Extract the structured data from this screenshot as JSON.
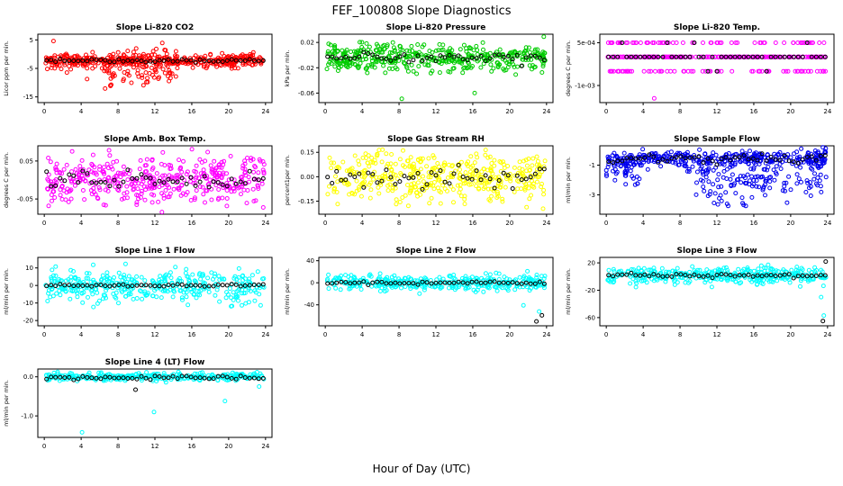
{
  "title": "FEF_100808  Slope Diagnostics",
  "xlabel": "Hour of Day (UTC)",
  "chart_data": [
    {
      "type": "scatter",
      "title": "Slope Li-820 CO2",
      "ylabel": "Licor ppm per min.",
      "color": "#ff0000",
      "xlim": [
        -0.7,
        24.7
      ],
      "ylim": [
        -17,
        7
      ],
      "xticks": [
        0,
        4,
        8,
        12,
        16,
        20,
        24
      ],
      "yticks": [
        {
          "v": 5,
          "label": "5"
        },
        {
          "v": -5,
          "label": "-5"
        },
        {
          "v": -15,
          "label": "-15"
        }
      ],
      "main": {
        "n": 380,
        "center": -2.2,
        "sd": 1.1,
        "clip": [
          -6,
          1.5
        ]
      },
      "extras": [
        {
          "n": 110,
          "x0": 6,
          "x1": 14.5,
          "center": -5,
          "sd": 3.5,
          "clip": [
            -16,
            2
          ]
        },
        {
          "n": 30,
          "x0": 0,
          "x1": 6,
          "center": -3.5,
          "sd": 1.8,
          "clip": [
            -9,
            0
          ]
        }
      ],
      "outliers": [
        [
          1.0,
          4.6
        ],
        [
          12.8,
          3.9
        ]
      ],
      "overlay": {
        "n": 49,
        "center": -2.3,
        "sd": 0.25
      }
    },
    {
      "type": "scatter",
      "title": "Slope Li-820 Pressure",
      "ylabel": "kPa per min.",
      "color": "#00cc00",
      "xlim": [
        -0.7,
        24.7
      ],
      "ylim": [
        -0.075,
        0.033
      ],
      "xticks": [
        0,
        4,
        8,
        12,
        16,
        20,
        24
      ],
      "yticks": [
        {
          "v": 0.02,
          "label": "0.02"
        },
        {
          "v": -0.02,
          "label": "-0.02"
        },
        {
          "v": -0.06,
          "label": "-0.06"
        }
      ],
      "main": {
        "n": 430,
        "center": -0.004,
        "sd": 0.011,
        "clip": [
          -0.045,
          0.024
        ]
      },
      "outliers": [
        [
          8.3,
          -0.069
        ],
        [
          16.2,
          -0.06
        ],
        [
          23.7,
          0.029
        ]
      ],
      "overlay": {
        "n": 49,
        "center": -0.004,
        "sd": 0.004
      }
    },
    {
      "type": "scatter",
      "title": "Slope Li-820 Temp.",
      "ylabel": "degrees C per min.",
      "color": "#ff00ff",
      "xlim": [
        -0.7,
        24.7
      ],
      "ylim": [
        -0.0016,
        0.0008
      ],
      "xticks": [
        0,
        4,
        8,
        12,
        16,
        20,
        24
      ],
      "yticks": [
        {
          "v": 0.0005,
          "label": "5e-04"
        },
        {
          "v": -0.001,
          "label": "-1e-03"
        }
      ],
      "bands": {
        "n": 340,
        "values": [
          0.0005,
          0,
          -0.0005
        ],
        "weights": [
          0.18,
          0.64,
          0.18
        ]
      },
      "outliers": [
        [
          5.2,
          -0.00145
        ]
      ],
      "overlay": {
        "n": 49,
        "bands": {
          "values": [
            0.0005,
            0,
            -0.0005
          ],
          "weights": [
            0.08,
            0.84,
            0.08
          ]
        }
      }
    },
    {
      "type": "scatter",
      "title": "Slope Amb. Box Temp.",
      "ylabel": "degrees C per min.",
      "color": "#ff00ff",
      "xlim": [
        -0.7,
        24.7
      ],
      "ylim": [
        -0.09,
        0.09
      ],
      "xticks": [
        0,
        4,
        8,
        12,
        16,
        20,
        24
      ],
      "yticks": [
        {
          "v": 0.05,
          "label": "0.05"
        },
        {
          "v": -0.05,
          "label": "-0.05"
        }
      ],
      "main": {
        "n": 420,
        "center": 0,
        "sd": 0.032,
        "clip": [
          -0.085,
          0.085
        ]
      },
      "overlay": {
        "n": 49,
        "center": 0,
        "sd": 0.012
      }
    },
    {
      "type": "scatter",
      "title": "Slope Gas Stream RH",
      "ylabel": "percent1per min.",
      "color": "#ffff00",
      "xlim": [
        -0.7,
        24.7
      ],
      "ylim": [
        -0.23,
        0.19
      ],
      "xticks": [
        0,
        4,
        8,
        12,
        16,
        20,
        24
      ],
      "yticks": [
        {
          "v": 0.15,
          "label": "0.15"
        },
        {
          "v": 0,
          "label": "0.00"
        },
        {
          "v": -0.15,
          "label": "-0.15"
        }
      ],
      "main": {
        "n": 430,
        "center": 0,
        "sd": 0.08,
        "clip": [
          -0.21,
          0.17
        ]
      },
      "overlay": {
        "n": 49,
        "center": 0,
        "sd": 0.035
      }
    },
    {
      "type": "scatter",
      "title": "Slope Sample Flow",
      "ylabel": "ml/min per min.",
      "color": "#0000ee",
      "xlim": [
        -0.7,
        24.7
      ],
      "ylim": [
        -4.3,
        0.3
      ],
      "xticks": [
        0,
        4,
        8,
        12,
        16,
        20,
        24
      ],
      "yticks": [
        {
          "v": -1,
          "label": "-1"
        },
        {
          "v": -3,
          "label": "-3"
        }
      ],
      "main": {
        "n": 330,
        "center": -0.55,
        "sd": 0.25,
        "clip": [
          -1.3,
          0.15
        ]
      },
      "extras": [
        {
          "n": 160,
          "x0": 8.5,
          "x1": 24,
          "center": -1.9,
          "sd": 0.8,
          "clip": [
            -3.9,
            -0.5
          ]
        },
        {
          "n": 40,
          "x0": 0,
          "x1": 4,
          "center": -1.4,
          "sd": 0.5,
          "clip": [
            -2.6,
            -0.6
          ]
        }
      ],
      "outliers": [
        [
          23.5,
          0.2
        ],
        [
          23.8,
          0.12
        ]
      ],
      "overlay": {
        "n": 49,
        "center": -0.6,
        "sd": 0.15
      }
    },
    {
      "type": "scatter",
      "title": "Slope Line 1 Flow",
      "ylabel": "ml/min per min.",
      "color": "#00ffff",
      "xlim": [
        -0.7,
        24.7
      ],
      "ylim": [
        -23,
        16
      ],
      "xticks": [
        0,
        4,
        8,
        12,
        16,
        20,
        24
      ],
      "yticks": [
        {
          "v": 10,
          "label": "10"
        },
        {
          "v": 0,
          "label": "0"
        },
        {
          "v": -10,
          "label": "-10"
        },
        {
          "v": -20,
          "label": "-20"
        }
      ],
      "main": {
        "n": 380,
        "center": 0,
        "sd": 4.5,
        "clip": [
          -20,
          14
        ]
      },
      "overlay": {
        "n": 49,
        "center": 0,
        "sd": 0.4
      }
    },
    {
      "type": "scatter",
      "title": "Slope Line 2 Flow",
      "ylabel": "ml/min per min.",
      "color": "#00ffff",
      "xlim": [
        -0.7,
        24.7
      ],
      "ylim": [
        -78,
        46
      ],
      "xticks": [
        0,
        4,
        8,
        12,
        16,
        20,
        24
      ],
      "yticks": [
        {
          "v": 40,
          "label": "40"
        },
        {
          "v": 0,
          "label": "0"
        },
        {
          "v": -40,
          "label": "-40"
        }
      ],
      "main": {
        "n": 380,
        "center": 0,
        "sd": 7,
        "clip": [
          -38,
          34
        ]
      },
      "outliers": [
        [
          21.5,
          -41
        ],
        [
          23.2,
          -52
        ]
      ],
      "overlay": {
        "n": 49,
        "center": 0,
        "sd": 1.2
      },
      "overlay_outliers": [
        [
          22.9,
          -70
        ],
        [
          23.5,
          -59
        ]
      ]
    },
    {
      "type": "scatter",
      "title": "Slope Line 3 Flow",
      "ylabel": "ml/min per min.",
      "color": "#00ffff",
      "xlim": [
        -0.7,
        24.7
      ],
      "ylim": [
        -72,
        28
      ],
      "xticks": [
        0,
        4,
        8,
        12,
        16,
        20,
        24
      ],
      "yticks": [
        {
          "v": 20,
          "label": "20"
        },
        {
          "v": -20,
          "label": "-20"
        },
        {
          "v": -60,
          "label": "-60"
        }
      ],
      "main": {
        "n": 380,
        "center": 2,
        "sd": 6,
        "clip": [
          -18,
          20
        ]
      },
      "outliers": [
        [
          23.3,
          -30
        ],
        [
          23.6,
          -57
        ]
      ],
      "overlay": {
        "n": 49,
        "center": 2,
        "sd": 1.5
      },
      "overlay_outliers": [
        [
          23.5,
          -65
        ],
        [
          23.8,
          22
        ]
      ]
    },
    {
      "type": "scatter",
      "title": "Slope Line 4 (LT) Flow",
      "ylabel": "ml/min per min.",
      "color": "#00ffff",
      "xlim": [
        -0.7,
        24.7
      ],
      "ylim": [
        -1.55,
        0.2
      ],
      "xticks": [
        0,
        4,
        8,
        12,
        16,
        20,
        24
      ],
      "yticks": [
        {
          "v": 0,
          "label": "0.0"
        },
        {
          "v": -1,
          "label": "-1.0"
        }
      ],
      "main": {
        "n": 300,
        "center": 0,
        "sd": 0.05,
        "clip": [
          -0.3,
          0.13
        ]
      },
      "outliers": [
        [
          4.1,
          -1.42
        ],
        [
          11.9,
          -0.9
        ],
        [
          19.6,
          -0.62
        ],
        [
          23.3,
          -0.25
        ]
      ],
      "overlay": {
        "n": 49,
        "center": -0.02,
        "sd": 0.03
      },
      "overlay_outliers": [
        [
          9.9,
          -0.33
        ]
      ]
    }
  ]
}
